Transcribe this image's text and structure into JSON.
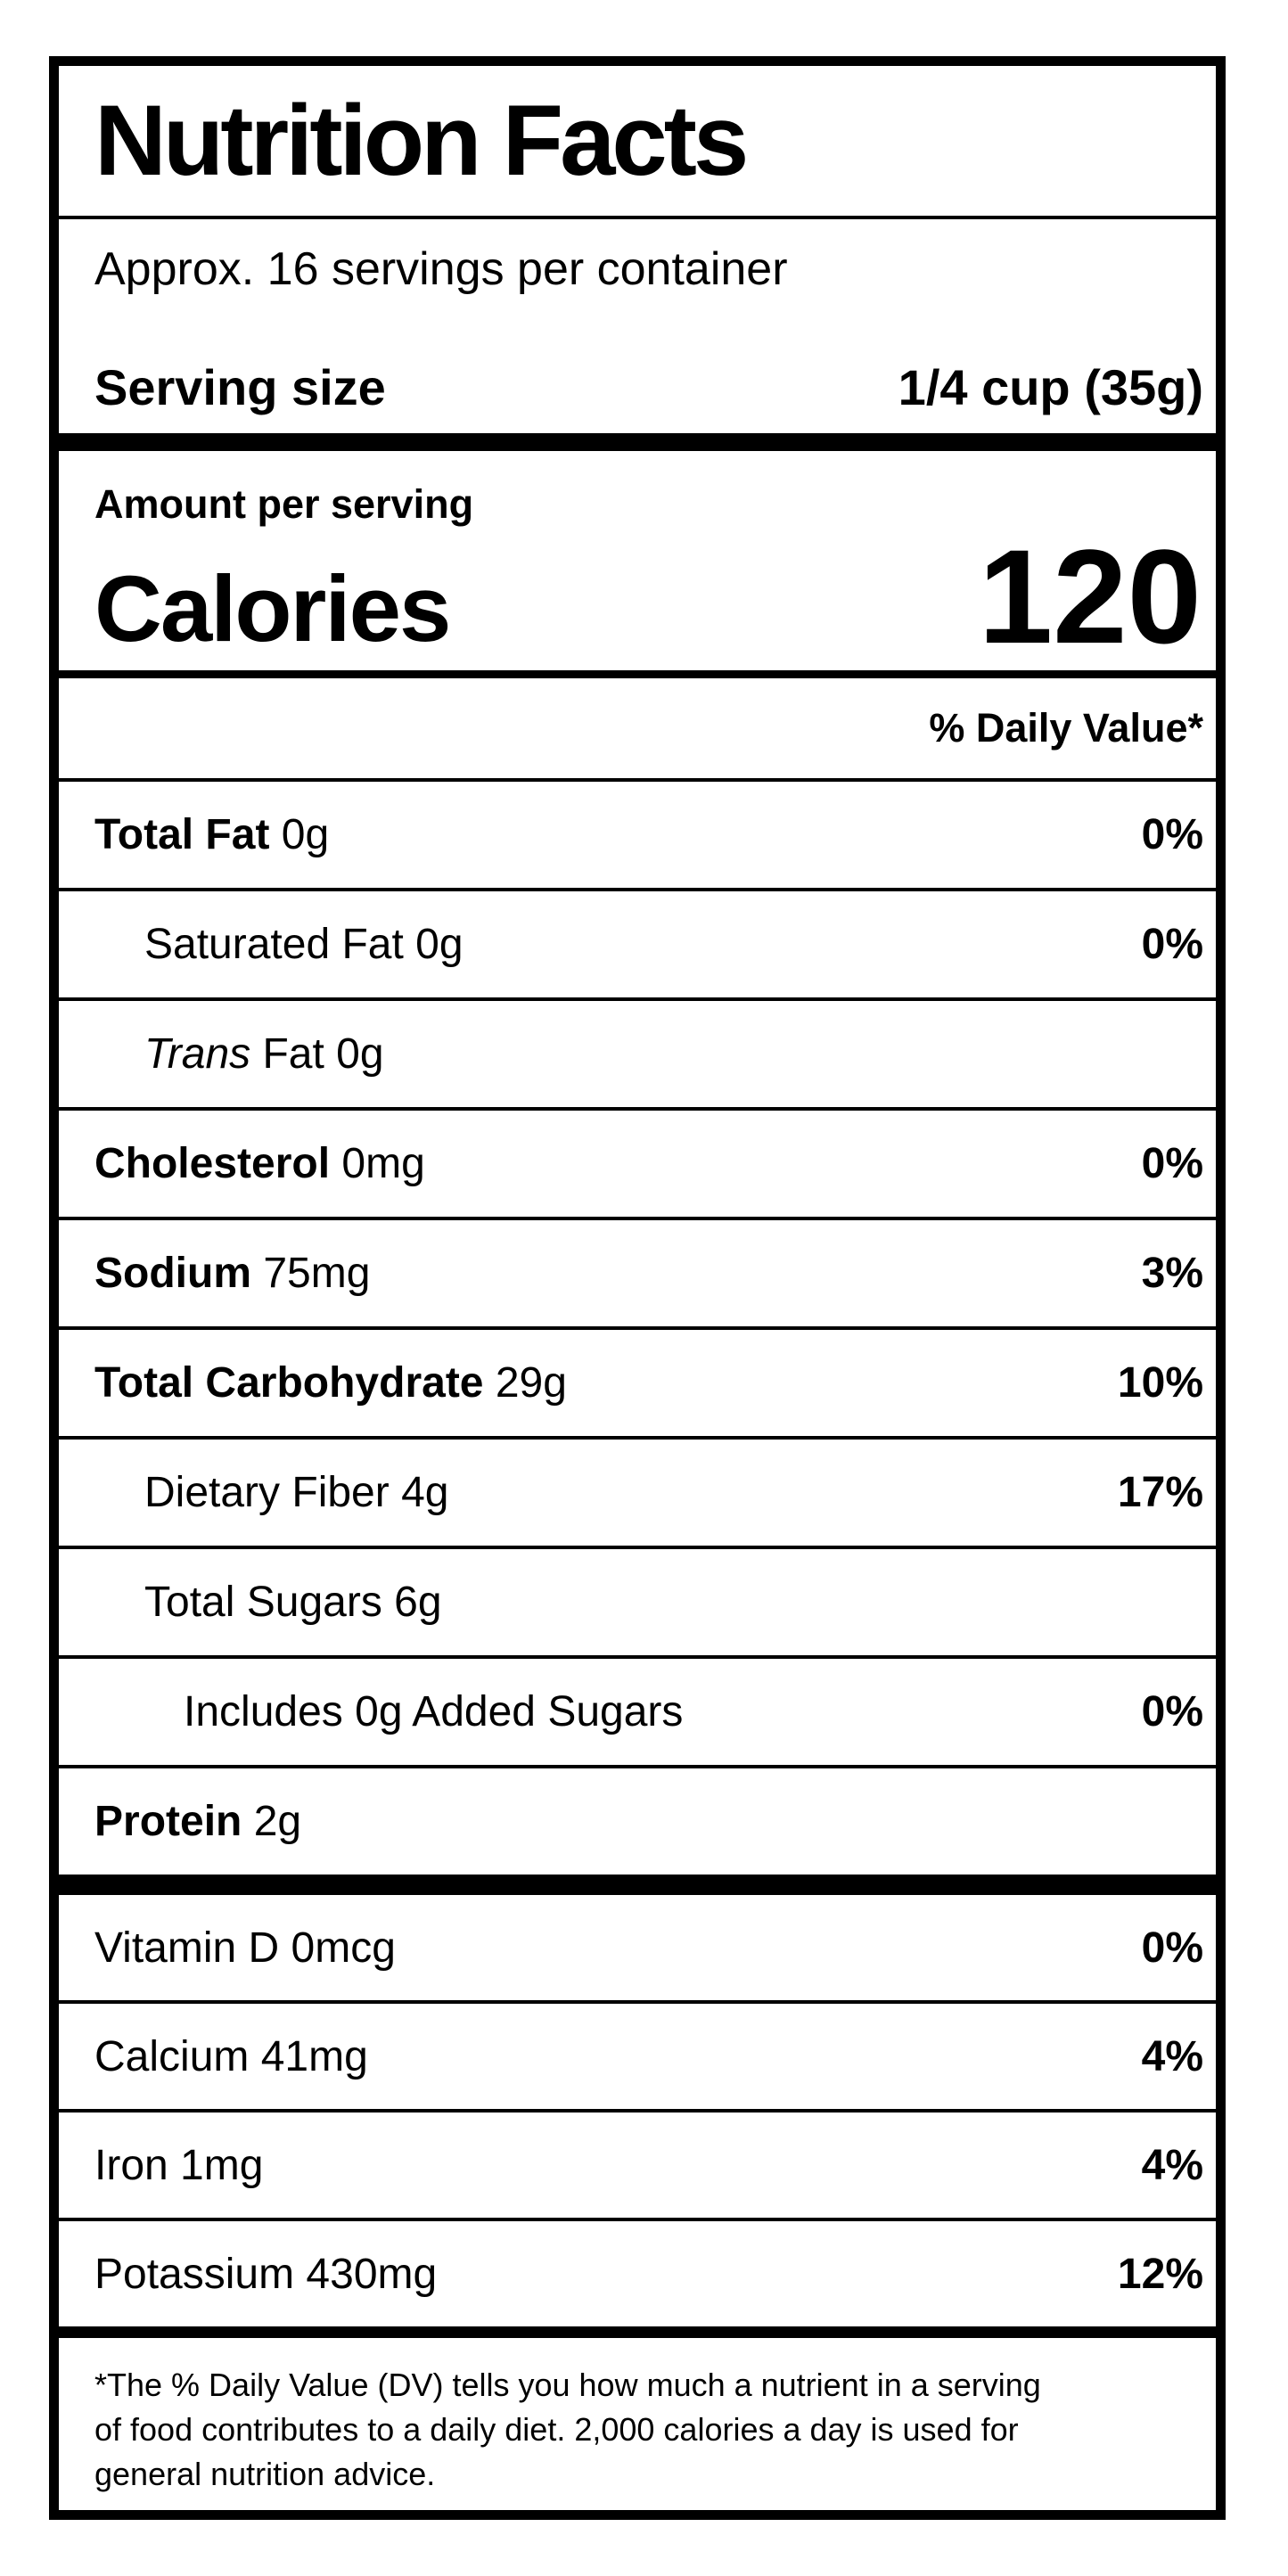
{
  "colors": {
    "text": "#000000",
    "background": "#ffffff"
  },
  "label": {
    "title": "Nutrition Facts",
    "servings_per_container": "Approx. 16 servings per container",
    "serving_size_label": "Serving size",
    "serving_size_value": "1/4 cup (35g)",
    "amount_per_serving": "Amount per serving",
    "calories_label": "Calories",
    "calories_value": "120",
    "daily_value_header": "% Daily Value*",
    "rows": {
      "total_fat": {
        "strong": "Total Fat",
        "plain": " 0g",
        "dv": "0%"
      },
      "sat_fat": {
        "plain": "Saturated Fat 0g",
        "dv": "0%"
      },
      "trans_fat": {
        "em": "Trans",
        "plain": " Fat 0g",
        "dv": ""
      },
      "cholesterol": {
        "strong": "Cholesterol",
        "plain": " 0mg",
        "dv": "0%"
      },
      "sodium": {
        "strong": "Sodium",
        "plain": " 75mg",
        "dv": "3%"
      },
      "total_carb": {
        "strong": "Total Carbohydrate",
        "plain": " 29g",
        "dv": "10%"
      },
      "fiber": {
        "plain": "Dietary Fiber 4g",
        "dv": "17%"
      },
      "sugars": {
        "plain": "Total Sugars 6g",
        "dv": ""
      },
      "added_sugars": {
        "plain": "Includes 0g Added Sugars",
        "dv": "0%"
      },
      "protein": {
        "strong": "Protein",
        "plain": " 2g",
        "dv": ""
      },
      "vitamin_d": {
        "plain": "Vitamin D 0mcg",
        "dv": "0%"
      },
      "calcium": {
        "plain": "Calcium 41mg",
        "dv": "4%"
      },
      "iron": {
        "plain": "Iron 1mg",
        "dv": "4%"
      },
      "potassium": {
        "plain": "Potassium 430mg",
        "dv": "12%"
      }
    },
    "footnote_lines": {
      "line1": "*The % Daily Value (DV) tells you how much a nutrient in a serving",
      "line2": "of food contributes to a daily diet. 2,000 calories a day is used for",
      "line3": "general nutrition advice."
    }
  }
}
